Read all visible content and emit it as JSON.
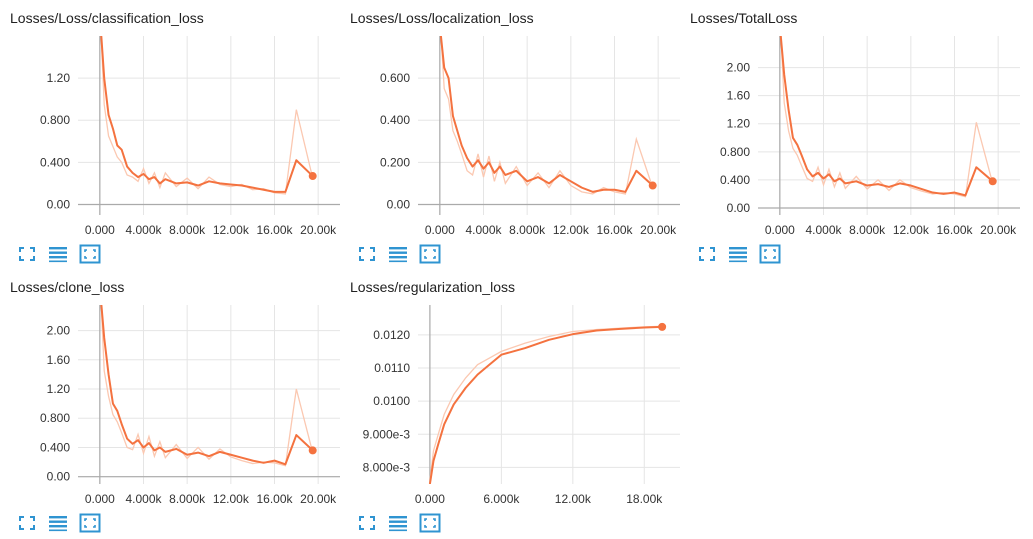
{
  "colors": {
    "line": "#f4723f",
    "raw_line": "#fbc8b1",
    "grid": "#e5e5e5",
    "axis": "#aaaaaa",
    "button": "#2f94d1",
    "text": "#212121"
  },
  "icons": {
    "fullscreen": "fullscreen-icon",
    "toggle_log": "list-icon",
    "fit_domain": "fit-domain-icon"
  },
  "chart_data": [
    {
      "type": "line",
      "title": "Losses/Loss/classification_loss",
      "xlim": [
        -2000,
        22000
      ],
      "ylim": [
        -0.1,
        1.6
      ],
      "x_ticks": [
        0,
        4000,
        8000,
        12000,
        16000,
        20000
      ],
      "x_tick_labels": [
        "0.000",
        "4.000k",
        "8.000k",
        "12.00k",
        "16.00k",
        "20.00k"
      ],
      "y_ticks": [
        0,
        0.4,
        0.8,
        1.2
      ],
      "y_tick_labels": [
        "0.00",
        "0.400",
        "0.800",
        "1.20"
      ],
      "series": [
        {
          "x": [
            0,
            400,
            800,
            1200,
            1600,
            2000,
            2500,
            3000,
            3500,
            4000,
            4500,
            5000,
            5500,
            6000,
            7000,
            8000,
            9000,
            10000,
            11000,
            12000,
            13000,
            14000,
            15000,
            16000,
            17000,
            18000,
            19500
          ],
          "y": [
            1.8,
            1.2,
            0.85,
            0.72,
            0.56,
            0.52,
            0.36,
            0.3,
            0.26,
            0.29,
            0.24,
            0.26,
            0.2,
            0.24,
            0.2,
            0.21,
            0.18,
            0.22,
            0.2,
            0.19,
            0.18,
            0.16,
            0.14,
            0.12,
            0.12,
            0.42,
            0.27
          ],
          "raw": [
            1.9,
            0.95,
            0.65,
            0.55,
            0.45,
            0.4,
            0.28,
            0.26,
            0.22,
            0.34,
            0.2,
            0.3,
            0.16,
            0.3,
            0.17,
            0.25,
            0.15,
            0.26,
            0.19,
            0.17,
            0.19,
            0.14,
            0.15,
            0.11,
            0.1,
            0.9,
            0.25
          ]
        }
      ]
    },
    {
      "type": "line",
      "title": "Losses/Loss/localization_loss",
      "xlim": [
        -2000,
        22000
      ],
      "ylim": [
        -0.05,
        0.8
      ],
      "x_ticks": [
        0,
        4000,
        8000,
        12000,
        16000,
        20000
      ],
      "x_tick_labels": [
        "0.000",
        "4.000k",
        "8.000k",
        "12.00k",
        "16.00k",
        "20.00k"
      ],
      "y_ticks": [
        0,
        0.2,
        0.4,
        0.6
      ],
      "y_tick_labels": [
        "0.00",
        "0.200",
        "0.400",
        "0.600"
      ],
      "series": [
        {
          "x": [
            0,
            400,
            800,
            1200,
            1600,
            2000,
            2500,
            3000,
            3500,
            4000,
            4500,
            5000,
            5500,
            6000,
            7000,
            8000,
            9000,
            10000,
            11000,
            12000,
            13000,
            14000,
            15000,
            16000,
            17000,
            18000,
            19500
          ],
          "y": [
            0.85,
            0.65,
            0.6,
            0.42,
            0.35,
            0.28,
            0.22,
            0.18,
            0.21,
            0.17,
            0.2,
            0.15,
            0.18,
            0.14,
            0.16,
            0.11,
            0.13,
            0.1,
            0.14,
            0.11,
            0.08,
            0.06,
            0.07,
            0.07,
            0.06,
            0.16,
            0.09
          ],
          "raw": [
            0.9,
            0.55,
            0.5,
            0.35,
            0.3,
            0.24,
            0.16,
            0.14,
            0.24,
            0.13,
            0.23,
            0.11,
            0.2,
            0.1,
            0.18,
            0.09,
            0.15,
            0.08,
            0.16,
            0.09,
            0.06,
            0.05,
            0.08,
            0.06,
            0.05,
            0.31,
            0.08
          ]
        }
      ]
    },
    {
      "type": "line",
      "title": "Losses/TotalLoss",
      "xlim": [
        -2000,
        22000
      ],
      "ylim": [
        -0.1,
        2.45
      ],
      "x_ticks": [
        0,
        4000,
        8000,
        12000,
        16000,
        20000
      ],
      "x_tick_labels": [
        "0.000",
        "4.000k",
        "8.000k",
        "12.00k",
        "16.00k",
        "20.00k"
      ],
      "y_ticks": [
        0,
        0.4,
        0.8,
        1.2,
        1.6,
        2.0
      ],
      "y_tick_labels": [
        "0.00",
        "0.400",
        "0.800",
        "1.20",
        "1.60",
        "2.00"
      ],
      "series": [
        {
          "x": [
            0,
            400,
            800,
            1200,
            1600,
            2000,
            2500,
            3000,
            3500,
            4000,
            4500,
            5000,
            5500,
            6000,
            7000,
            8000,
            9000,
            10000,
            11000,
            12000,
            13000,
            14000,
            15000,
            16000,
            17000,
            18000,
            19500
          ],
          "y": [
            2.6,
            1.9,
            1.4,
            1.0,
            0.9,
            0.75,
            0.55,
            0.45,
            0.5,
            0.42,
            0.48,
            0.38,
            0.42,
            0.35,
            0.38,
            0.32,
            0.34,
            0.3,
            0.35,
            0.32,
            0.27,
            0.22,
            0.2,
            0.22,
            0.18,
            0.58,
            0.38
          ],
          "raw": [
            2.8,
            1.5,
            1.1,
            0.85,
            0.75,
            0.6,
            0.42,
            0.38,
            0.58,
            0.33,
            0.55,
            0.3,
            0.5,
            0.28,
            0.45,
            0.27,
            0.4,
            0.25,
            0.4,
            0.29,
            0.24,
            0.2,
            0.22,
            0.2,
            0.16,
            1.22,
            0.35
          ]
        }
      ]
    },
    {
      "type": "line",
      "title": "Losses/clone_loss",
      "xlim": [
        -2000,
        22000
      ],
      "ylim": [
        -0.1,
        2.35
      ],
      "x_ticks": [
        0,
        4000,
        8000,
        12000,
        16000,
        20000
      ],
      "x_tick_labels": [
        "0.000",
        "4.000k",
        "8.000k",
        "12.00k",
        "16.00k",
        "20.00k"
      ],
      "y_ticks": [
        0,
        0.4,
        0.8,
        1.2,
        1.6,
        2.0
      ],
      "y_tick_labels": [
        "0.00",
        "0.400",
        "0.800",
        "1.20",
        "1.60",
        "2.00"
      ],
      "series": [
        {
          "x": [
            0,
            400,
            800,
            1200,
            1600,
            2000,
            2500,
            3000,
            3500,
            4000,
            4500,
            5000,
            5500,
            6000,
            7000,
            8000,
            9000,
            10000,
            11000,
            12000,
            13000,
            14000,
            15000,
            16000,
            17000,
            18000,
            19500
          ],
          "y": [
            2.6,
            1.9,
            1.4,
            1.0,
            0.9,
            0.72,
            0.52,
            0.45,
            0.5,
            0.4,
            0.46,
            0.36,
            0.4,
            0.34,
            0.38,
            0.3,
            0.33,
            0.28,
            0.34,
            0.3,
            0.26,
            0.22,
            0.19,
            0.22,
            0.17,
            0.57,
            0.36
          ],
          "raw": [
            2.8,
            1.45,
            1.1,
            0.85,
            0.75,
            0.6,
            0.4,
            0.37,
            0.58,
            0.32,
            0.55,
            0.28,
            0.48,
            0.26,
            0.44,
            0.25,
            0.4,
            0.24,
            0.38,
            0.27,
            0.22,
            0.18,
            0.2,
            0.19,
            0.15,
            1.2,
            0.33
          ]
        }
      ]
    },
    {
      "type": "line",
      "title": "Losses/regularization_loss",
      "xlim": [
        -1000,
        21000
      ],
      "ylim": [
        0.0075,
        0.0129
      ],
      "x_ticks": [
        0,
        6000,
        12000,
        18000
      ],
      "x_tick_labels": [
        "0.000",
        "6.000k",
        "12.00k",
        "18.00k"
      ],
      "y_ticks": [
        0.008,
        0.009,
        0.01,
        0.011,
        0.012
      ],
      "y_tick_labels": [
        "8.000e-3",
        "9.000e-3",
        "0.0100",
        "0.0110",
        "0.0120"
      ],
      "series": [
        {
          "x": [
            0,
            300,
            700,
            1200,
            2000,
            3000,
            4000,
            5000,
            6000,
            8000,
            10000,
            12000,
            14000,
            16000,
            18000,
            19500
          ],
          "y": [
            0.0075,
            0.0082,
            0.0087,
            0.0093,
            0.0099,
            0.0104,
            0.0108,
            0.0111,
            0.0114,
            0.0116,
            0.01185,
            0.01202,
            0.01213,
            0.01218,
            0.01222,
            0.01224
          ],
          "raw": [
            0.0076,
            0.0085,
            0.009,
            0.0096,
            0.0102,
            0.0107,
            0.0111,
            0.0113,
            0.0115,
            0.01175,
            0.01195,
            0.0121,
            0.01216,
            0.0122,
            0.01224,
            0.01226
          ]
        }
      ]
    }
  ]
}
